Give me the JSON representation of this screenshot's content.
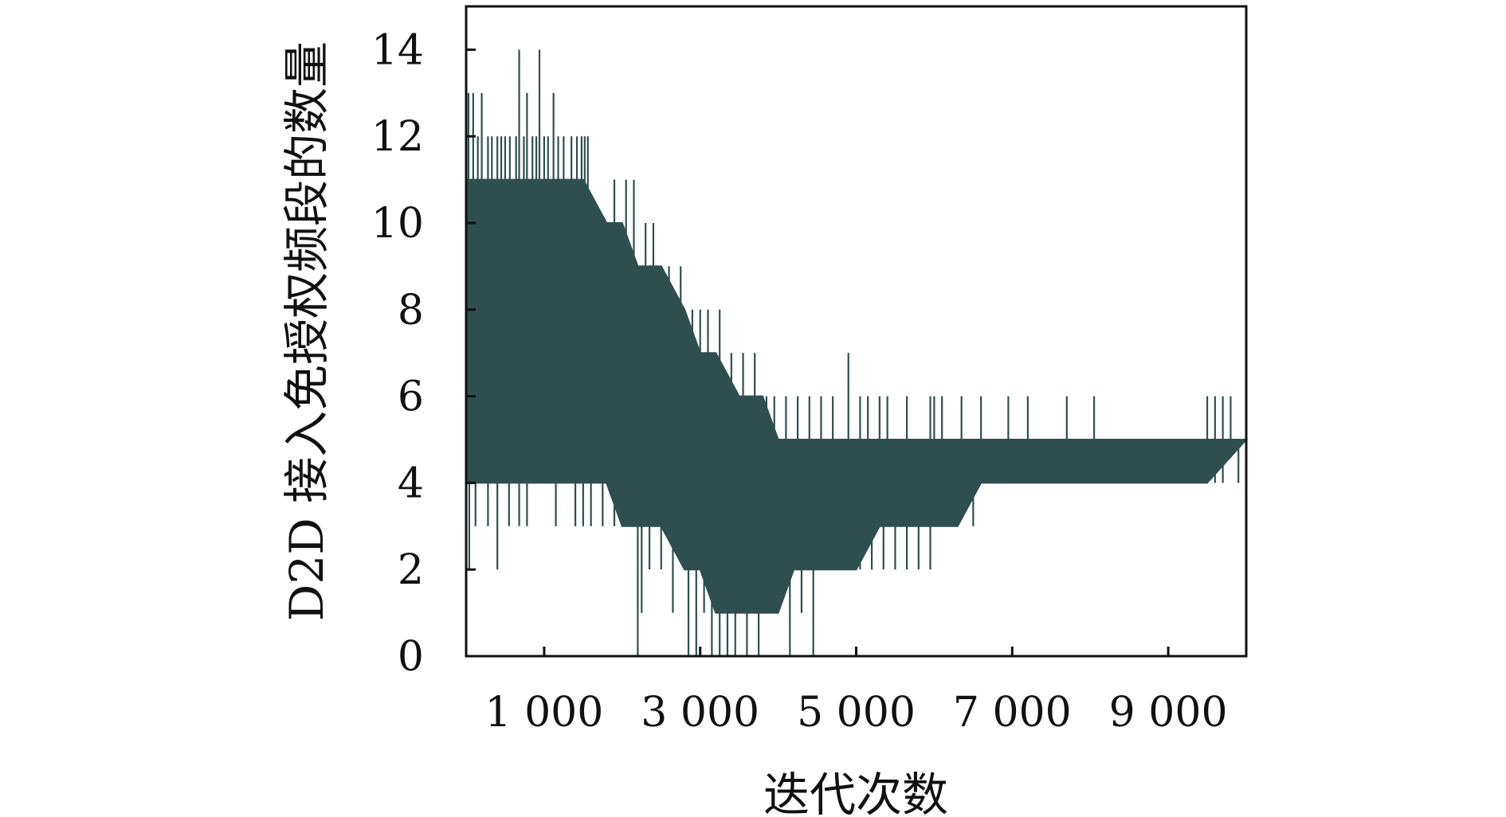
{
  "chart_data": {
    "type": "line",
    "title": "",
    "xlabel": "迭代次数",
    "ylabel": "D2D 接入免授权频段的数量",
    "xlim": [
      0,
      10000
    ],
    "ylim": [
      0,
      15
    ],
    "xticks": [
      1000,
      3000,
      5000,
      7000,
      9000
    ],
    "xtick_labels": [
      "1 000",
      "3 000",
      "5 000",
      "7 000",
      "9 000"
    ],
    "yticks": [
      0,
      2,
      4,
      6,
      8,
      10,
      12,
      14
    ],
    "ytick_labels": [
      "0",
      "2",
      "4",
      "6",
      "8",
      "10",
      "12",
      "14"
    ],
    "grid": false,
    "legend": "none",
    "series_color": "#2f4f4e",
    "envelope": {
      "x": [
        0,
        250,
        500,
        800,
        1000,
        1300,
        1500,
        1800,
        2000,
        2200,
        2500,
        2800,
        3000,
        3200,
        3500,
        3800,
        4000,
        4200,
        4500,
        4800,
        5000,
        5300,
        5500,
        5800,
        6000,
        6300,
        6600,
        7000,
        7500,
        8000,
        8500,
        9000,
        9500,
        10000
      ],
      "upper": [
        11,
        11,
        11,
        11,
        11,
        11,
        11,
        10,
        10,
        9,
        9,
        8,
        7,
        7,
        6,
        6,
        5,
        5,
        5,
        5,
        5,
        5,
        5,
        5,
        5,
        5,
        5,
        5,
        5,
        5,
        5,
        5,
        5,
        5
      ],
      "lower": [
        4,
        4,
        4,
        4,
        4,
        4,
        4,
        4,
        3,
        3,
        3,
        2,
        2,
        1,
        1,
        1,
        1,
        2,
        2,
        2,
        2,
        3,
        3,
        3,
        3,
        3,
        4,
        4,
        4,
        4,
        4,
        4,
        4,
        5
      ]
    },
    "upper_spikes": [
      {
        "x": 30,
        "y": 13
      },
      {
        "x": 90,
        "y": 13
      },
      {
        "x": 150,
        "y": 12
      },
      {
        "x": 200,
        "y": 13
      },
      {
        "x": 280,
        "y": 12
      },
      {
        "x": 330,
        "y": 12
      },
      {
        "x": 400,
        "y": 12
      },
      {
        "x": 450,
        "y": 12
      },
      {
        "x": 500,
        "y": 12
      },
      {
        "x": 560,
        "y": 12
      },
      {
        "x": 640,
        "y": 12
      },
      {
        "x": 680,
        "y": 14
      },
      {
        "x": 740,
        "y": 12
      },
      {
        "x": 780,
        "y": 13
      },
      {
        "x": 850,
        "y": 12
      },
      {
        "x": 900,
        "y": 12
      },
      {
        "x": 940,
        "y": 14
      },
      {
        "x": 1000,
        "y": 12
      },
      {
        "x": 1050,
        "y": 12
      },
      {
        "x": 1120,
        "y": 13
      },
      {
        "x": 1180,
        "y": 12
      },
      {
        "x": 1250,
        "y": 12
      },
      {
        "x": 1350,
        "y": 12
      },
      {
        "x": 1420,
        "y": 12
      },
      {
        "x": 1480,
        "y": 12
      },
      {
        "x": 1520,
        "y": 12
      },
      {
        "x": 1560,
        "y": 12
      },
      {
        "x": 1900,
        "y": 11
      },
      {
        "x": 2050,
        "y": 11
      },
      {
        "x": 2150,
        "y": 11
      },
      {
        "x": 2300,
        "y": 10
      },
      {
        "x": 2400,
        "y": 10
      },
      {
        "x": 2600,
        "y": 9
      },
      {
        "x": 2750,
        "y": 9
      },
      {
        "x": 2900,
        "y": 8
      },
      {
        "x": 3000,
        "y": 8
      },
      {
        "x": 3100,
        "y": 8
      },
      {
        "x": 3250,
        "y": 8
      },
      {
        "x": 3400,
        "y": 7
      },
      {
        "x": 3550,
        "y": 7
      },
      {
        "x": 3700,
        "y": 7
      },
      {
        "x": 3850,
        "y": 6
      },
      {
        "x": 3950,
        "y": 6
      },
      {
        "x": 4100,
        "y": 6
      },
      {
        "x": 4250,
        "y": 6
      },
      {
        "x": 4400,
        "y": 6
      },
      {
        "x": 4550,
        "y": 6
      },
      {
        "x": 4700,
        "y": 6
      },
      {
        "x": 4900,
        "y": 7
      },
      {
        "x": 5050,
        "y": 6
      },
      {
        "x": 5150,
        "y": 6
      },
      {
        "x": 5300,
        "y": 6
      },
      {
        "x": 5400,
        "y": 6
      },
      {
        "x": 5650,
        "y": 6
      },
      {
        "x": 5950,
        "y": 6
      },
      {
        "x": 6000,
        "y": 6
      },
      {
        "x": 6100,
        "y": 6
      },
      {
        "x": 6350,
        "y": 6
      },
      {
        "x": 6600,
        "y": 6
      },
      {
        "x": 6950,
        "y": 6
      },
      {
        "x": 7200,
        "y": 6
      },
      {
        "x": 7700,
        "y": 6
      },
      {
        "x": 8050,
        "y": 6
      },
      {
        "x": 9500,
        "y": 6
      },
      {
        "x": 9600,
        "y": 6
      },
      {
        "x": 9700,
        "y": 6
      },
      {
        "x": 9800,
        "y": 6
      }
    ],
    "lower_spikes": [
      {
        "x": 40,
        "y": 2
      },
      {
        "x": 120,
        "y": 3
      },
      {
        "x": 280,
        "y": 3
      },
      {
        "x": 400,
        "y": 2
      },
      {
        "x": 550,
        "y": 3
      },
      {
        "x": 680,
        "y": 3
      },
      {
        "x": 780,
        "y": 3
      },
      {
        "x": 1150,
        "y": 3
      },
      {
        "x": 1400,
        "y": 3
      },
      {
        "x": 1500,
        "y": 3
      },
      {
        "x": 1600,
        "y": 3
      },
      {
        "x": 1750,
        "y": 3
      },
      {
        "x": 1900,
        "y": 3
      },
      {
        "x": 2050,
        "y": 3
      },
      {
        "x": 2200,
        "y": 0
      },
      {
        "x": 2250,
        "y": 1
      },
      {
        "x": 2350,
        "y": 2
      },
      {
        "x": 2500,
        "y": 2
      },
      {
        "x": 2650,
        "y": 1
      },
      {
        "x": 2850,
        "y": 0
      },
      {
        "x": 2950,
        "y": 0
      },
      {
        "x": 3050,
        "y": 1
      },
      {
        "x": 3150,
        "y": 0
      },
      {
        "x": 3250,
        "y": 0
      },
      {
        "x": 3350,
        "y": 0
      },
      {
        "x": 3450,
        "y": 0
      },
      {
        "x": 3600,
        "y": 0
      },
      {
        "x": 3750,
        "y": 0
      },
      {
        "x": 3850,
        "y": 1
      },
      {
        "x": 3950,
        "y": 1
      },
      {
        "x": 4150,
        "y": 0
      },
      {
        "x": 4300,
        "y": 1
      },
      {
        "x": 4450,
        "y": 0
      },
      {
        "x": 4600,
        "y": 2
      },
      {
        "x": 4750,
        "y": 2
      },
      {
        "x": 4900,
        "y": 2
      },
      {
        "x": 5050,
        "y": 2
      },
      {
        "x": 5200,
        "y": 2
      },
      {
        "x": 5350,
        "y": 2
      },
      {
        "x": 5500,
        "y": 2
      },
      {
        "x": 5650,
        "y": 2
      },
      {
        "x": 5800,
        "y": 2
      },
      {
        "x": 5950,
        "y": 2
      },
      {
        "x": 6100,
        "y": 3
      },
      {
        "x": 6300,
        "y": 3
      },
      {
        "x": 6500,
        "y": 3
      },
      {
        "x": 6700,
        "y": 4
      },
      {
        "x": 6800,
        "y": 4
      },
      {
        "x": 6900,
        "y": 4
      },
      {
        "x": 7000,
        "y": 4
      },
      {
        "x": 7100,
        "y": 4
      },
      {
        "x": 7200,
        "y": 4
      },
      {
        "x": 7350,
        "y": 4
      },
      {
        "x": 7500,
        "y": 4
      },
      {
        "x": 7650,
        "y": 4
      },
      {
        "x": 7800,
        "y": 4
      },
      {
        "x": 8000,
        "y": 4
      },
      {
        "x": 8200,
        "y": 4
      },
      {
        "x": 8400,
        "y": 4
      },
      {
        "x": 8850,
        "y": 4
      },
      {
        "x": 9600,
        "y": 4
      },
      {
        "x": 9700,
        "y": 4
      },
      {
        "x": 9900,
        "y": 4
      }
    ]
  }
}
